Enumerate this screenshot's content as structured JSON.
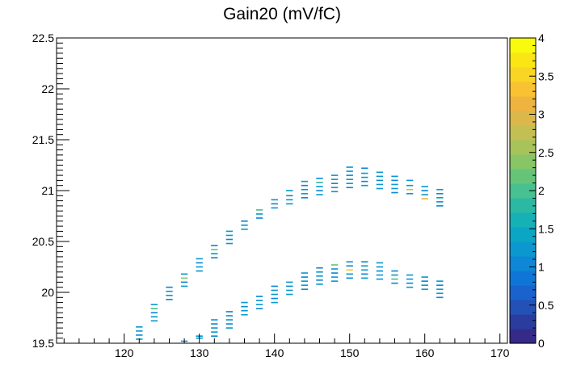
{
  "chart_data": {
    "type": "heatmap",
    "title": "Gain20 (mV/fC)",
    "xlabel": "",
    "ylabel": "",
    "xlim": [
      111,
      171
    ],
    "ylim": [
      19.5,
      22.5
    ],
    "x_ticks": [
      "120",
      "130",
      "140",
      "150",
      "160",
      "170"
    ],
    "y_ticks": [
      "19.5",
      "20",
      "20.5",
      "21",
      "21.5",
      "22",
      "22.5"
    ],
    "zlim": [
      0,
      4
    ],
    "z_ticks": [
      "0",
      "0.5",
      "1",
      "1.5",
      "2",
      "2.5",
      "3",
      "3.5",
      "4"
    ],
    "palette": [
      "#352a87",
      "#2a3d9e",
      "#2451b6",
      "#1a63cd",
      "#0f76d8",
      "#0d87d6",
      "#0b98cf",
      "#0ba6c4",
      "#16b1b6",
      "#2cb9a4",
      "#48c08f",
      "#66c479",
      "#87c566",
      "#a7c35a",
      "#c4bf52",
      "#dcb84a",
      "#eeb43f",
      "#f8c232",
      "#f9d623",
      "#f9e614",
      "#f9fb0e"
    ],
    "bins": {
      "x_width": 0.9,
      "y_height": 0.013,
      "lower_band": [
        {
          "x": 122,
          "y": [
            19.54,
            19.58,
            19.62,
            19.66
          ]
        },
        {
          "x": 124,
          "y": [
            19.72,
            19.76,
            19.8,
            19.84,
            19.88
          ]
        },
        {
          "x": 126,
          "y": [
            19.93,
            19.97,
            20.01,
            20.05
          ]
        },
        {
          "x": 128,
          "y": [
            20.06,
            20.1,
            20.14,
            20.18
          ]
        },
        {
          "x": 130,
          "y": [
            20.21,
            20.25,
            20.29,
            20.33
          ]
        },
        {
          "x": 132,
          "y": [
            20.34,
            20.38,
            20.42,
            20.46
          ]
        },
        {
          "x": 134,
          "y": [
            20.48,
            20.52,
            20.56,
            20.6
          ]
        },
        {
          "x": 136,
          "y": [
            20.62,
            20.66,
            20.7
          ]
        },
        {
          "x": 138,
          "y": [
            20.73,
            20.77,
            20.81
          ]
        },
        {
          "x": 140,
          "y": [
            20.83,
            20.87,
            20.91
          ]
        },
        {
          "x": 142,
          "y": [
            20.87,
            20.91,
            20.95,
            21.0
          ]
        },
        {
          "x": 144,
          "y": [
            20.93,
            20.97,
            21.01,
            21.05,
            21.09
          ]
        },
        {
          "x": 146,
          "y": [
            20.96,
            21.0,
            21.04,
            21.08,
            21.12
          ]
        },
        {
          "x": 148,
          "y": [
            20.99,
            21.03,
            21.07,
            21.11,
            21.15
          ]
        },
        {
          "x": 150,
          "y": [
            21.03,
            21.07,
            21.11,
            21.15,
            21.19,
            21.23
          ]
        },
        {
          "x": 152,
          "y": [
            21.05,
            21.09,
            21.13,
            21.17,
            21.22
          ]
        },
        {
          "x": 154,
          "y": [
            21.02,
            21.06,
            21.1,
            21.14,
            21.18
          ]
        },
        {
          "x": 156,
          "y": [
            20.98,
            21.02,
            21.06,
            21.1,
            21.14
          ]
        },
        {
          "x": 158,
          "y": [
            20.97,
            21.01,
            21.05,
            21.1
          ]
        },
        {
          "x": 160,
          "y": [
            20.92,
            20.96,
            21.0,
            21.04
          ]
        },
        {
          "x": 162,
          "y": [
            20.85,
            20.89,
            20.93,
            20.97,
            21.01
          ]
        }
      ],
      "upper_band_note": "",
      "second_band": [
        {
          "x": 128,
          "y": [
            19.52
          ]
        },
        {
          "x": 130,
          "y": [
            19.55,
            19.57
          ]
        },
        {
          "x": 132,
          "y": [
            19.57,
            19.61,
            19.65,
            19.69,
            19.73
          ]
        },
        {
          "x": 134,
          "y": [
            19.65,
            19.69,
            19.73,
            19.77,
            19.81
          ]
        },
        {
          "x": 136,
          "y": [
            19.78,
            19.82,
            19.86,
            19.9
          ]
        },
        {
          "x": 138,
          "y": [
            19.84,
            19.88,
            19.92,
            19.96
          ]
        },
        {
          "x": 140,
          "y": [
            19.9,
            19.94,
            19.98,
            20.02,
            20.06
          ]
        },
        {
          "x": 142,
          "y": [
            19.98,
            20.02,
            20.06,
            20.1
          ]
        },
        {
          "x": 144,
          "y": [
            20.03,
            20.07,
            20.11,
            20.15,
            20.19
          ]
        },
        {
          "x": 146,
          "y": [
            20.08,
            20.12,
            20.16,
            20.2,
            20.24
          ]
        },
        {
          "x": 148,
          "y": [
            20.11,
            20.15,
            20.19,
            20.23,
            20.27
          ]
        },
        {
          "x": 150,
          "y": [
            20.14,
            20.18,
            20.22,
            20.26,
            20.3
          ]
        },
        {
          "x": 152,
          "y": [
            20.14,
            20.18,
            20.22,
            20.26,
            20.3
          ]
        },
        {
          "x": 154,
          "y": [
            20.13,
            20.17,
            20.21,
            20.25,
            20.29
          ]
        },
        {
          "x": 156,
          "y": [
            20.09,
            20.13,
            20.17,
            20.21
          ]
        },
        {
          "x": 158,
          "y": [
            20.05,
            20.09,
            20.13,
            20.17
          ]
        },
        {
          "x": 160,
          "y": [
            20.03,
            20.07,
            20.11,
            20.15
          ]
        },
        {
          "x": 162,
          "y": [
            19.95,
            19.99,
            20.03,
            20.07,
            20.11
          ]
        }
      ],
      "hot_bins": [
        {
          "x": 128,
          "y": 20.14,
          "z": 2.4
        },
        {
          "x": 132,
          "y": 20.42,
          "z": 2.1
        },
        {
          "x": 124,
          "y": 19.84,
          "z": 2.0
        },
        {
          "x": 146,
          "y": 21.08,
          "z": 1.8
        },
        {
          "x": 150,
          "y": 20.22,
          "z": 3.4
        },
        {
          "x": 158,
          "y": 21.01,
          "z": 2.8
        },
        {
          "x": 160,
          "y": 20.92,
          "z": 3.1
        },
        {
          "x": 154,
          "y": 20.3,
          "z": 3.2
        },
        {
          "x": 148,
          "y": 20.27,
          "z": 2.2
        },
        {
          "x": 156,
          "y": 20.13,
          "z": 2.0
        },
        {
          "x": 138,
          "y": 20.81,
          "z": 1.9
        }
      ]
    }
  }
}
